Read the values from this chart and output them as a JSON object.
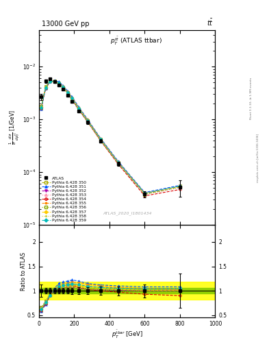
{
  "title_top": "13000 GeV pp",
  "title_right": "tt",
  "plot_title": "$p_T^{t\\bar{t}}$ (ATLAS ttbar)",
  "watermark": "ATLAS_2020_I1801434",
  "right_label": "Rivet 3.1.10, ≥ 1.9M events",
  "right_label2": "mcplots.cern.ch [arXiv:1306.3436]",
  "xlim": [
    0,
    1000
  ],
  "ylim_main": [
    1e-05,
    0.05
  ],
  "ylim_ratio": [
    0.45,
    2.35
  ],
  "atlas_x": [
    12.5,
    37.5,
    62.5,
    87.5,
    112.5,
    137.5,
    162.5,
    187.5,
    225,
    275,
    350,
    450,
    600,
    800
  ],
  "atlas_y": [
    0.0027,
    0.0053,
    0.0058,
    0.0052,
    0.0045,
    0.0037,
    0.0029,
    0.0022,
    0.00145,
    0.00088,
    0.00039,
    0.000145,
    3.8e-05,
    5.2e-05
  ],
  "atlas_yerr": [
    0.00035,
    0.00032,
    0.0003,
    0.00028,
    0.00024,
    0.0002,
    0.00017,
    0.00014,
    0.0001,
    6.5e-05,
    3.2e-05,
    1.3e-05,
    5e-06,
    1.8e-05
  ],
  "mc_configs": [
    {
      "label": "Pythia 6.428 350",
      "color": "#aaaa00",
      "marker": "s",
      "ls": "--",
      "mfc": "none"
    },
    {
      "label": "Pythia 6.428 351",
      "color": "#0055ff",
      "marker": "^",
      "ls": "--",
      "mfc": "#0055ff"
    },
    {
      "label": "Pythia 6.428 352",
      "color": "#aa00aa",
      "marker": "v",
      "ls": "--",
      "mfc": "#aa00aa"
    },
    {
      "label": "Pythia 6.428 353",
      "color": "#ff88aa",
      "marker": "^",
      "ls": ":",
      "mfc": "none"
    },
    {
      "label": "Pythia 6.428 354",
      "color": "#dd0000",
      "marker": "o",
      "ls": "--",
      "mfc": "none"
    },
    {
      "label": "Pythia 6.428 355",
      "color": "#ff8800",
      "marker": "*",
      "ls": "--",
      "mfc": "#ff8800"
    },
    {
      "label": "Pythia 6.428 356",
      "color": "#88aa00",
      "marker": "s",
      "ls": ":",
      "mfc": "none"
    },
    {
      "label": "Pythia 6.428 357",
      "color": "#ffcc00",
      "marker": "D",
      "ls": "--",
      "mfc": "#ffcc00"
    },
    {
      "label": "Pythia 6.428 358",
      "color": "#cccc44",
      "marker": ".",
      "ls": ":",
      "mfc": "#cccc44"
    },
    {
      "label": "Pythia 6.428 359",
      "color": "#00bbbb",
      "marker": "D",
      "ls": "--",
      "mfc": "#00bbbb"
    }
  ],
  "mc_ratios": [
    [
      0.6,
      0.75,
      0.92,
      1.02,
      1.08,
      1.1,
      1.12,
      1.12,
      1.1,
      1.08,
      1.07,
      1.06,
      1.05,
      1.05
    ],
    [
      0.58,
      0.72,
      0.9,
      1.05,
      1.15,
      1.18,
      1.2,
      1.22,
      1.2,
      1.15,
      1.12,
      1.1,
      1.08,
      1.08
    ],
    [
      0.65,
      0.78,
      0.93,
      1.0,
      1.05,
      1.06,
      1.07,
      1.07,
      1.05,
      1.03,
      1.02,
      1.01,
      1.0,
      1.0
    ],
    [
      0.62,
      0.76,
      0.91,
      1.01,
      1.08,
      1.12,
      1.15,
      1.16,
      1.14,
      1.1,
      1.08,
      1.06,
      1.04,
      1.04
    ],
    [
      0.6,
      0.73,
      0.9,
      1.0,
      1.06,
      1.08,
      1.1,
      1.1,
      1.08,
      1.03,
      1.0,
      0.97,
      0.93,
      0.9
    ],
    [
      0.63,
      0.77,
      0.93,
      1.02,
      1.1,
      1.14,
      1.16,
      1.18,
      1.17,
      1.13,
      1.1,
      1.07,
      1.05,
      1.02
    ],
    [
      0.66,
      0.79,
      0.93,
      1.0,
      1.04,
      1.06,
      1.07,
      1.07,
      1.05,
      1.03,
      1.01,
      1.0,
      0.99,
      0.99
    ],
    [
      0.64,
      0.77,
      0.92,
      1.0,
      1.07,
      1.1,
      1.12,
      1.13,
      1.11,
      1.07,
      1.05,
      1.03,
      1.01,
      1.01
    ],
    [
      0.65,
      0.78,
      0.93,
      1.01,
      1.05,
      1.07,
      1.08,
      1.09,
      1.07,
      1.04,
      1.02,
      1.01,
      1.0,
      1.0
    ],
    [
      0.62,
      0.76,
      0.91,
      1.01,
      1.08,
      1.11,
      1.13,
      1.14,
      1.13,
      1.09,
      1.07,
      1.05,
      1.04,
      1.04
    ]
  ],
  "band_green_inner": 0.06,
  "band_yellow_outer": 0.18,
  "background_color": "#ffffff"
}
